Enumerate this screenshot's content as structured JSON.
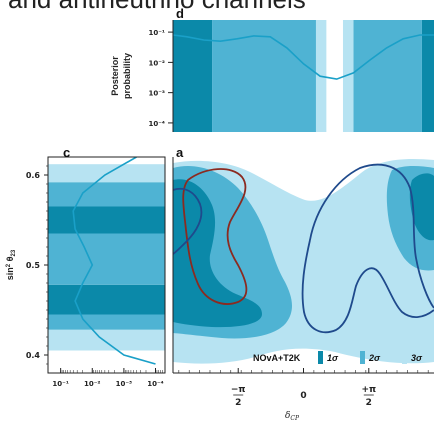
{
  "header_text": "and antineutrino channels",
  "colors": {
    "sigma1": "#0b89a9",
    "sigma2": "#4fb3d3",
    "sigma3": "#b7e3f2",
    "contour_blue": "#1f4a8c",
    "contour_red": "#8b2a20",
    "posterior_line": "#1aa0c8"
  },
  "chart_data": [
    {
      "panel": "d",
      "type": "area",
      "ylabel": "Posterior probability",
      "y_ticks": [
        "10⁻¹",
        "10⁻²",
        "10⁻³",
        "10⁻⁴"
      ],
      "y_scale": "log",
      "x_shared_with": "a",
      "bands": [
        {
          "name": "1σ",
          "intervals": [
            [
              -3.14,
              -2.2
            ],
            [
              2.85,
              3.14
            ]
          ]
        },
        {
          "name": "2σ",
          "intervals": [
            [
              -2.2,
              0.3
            ],
            [
              1.2,
              2.85
            ]
          ]
        },
        {
          "name": "3σ",
          "intervals": [
            [
              0.3,
              0.55
            ],
            [
              0.95,
              1.2
            ]
          ]
        }
      ],
      "curve": {
        "x": [
          -3.14,
          -2.8,
          -2.4,
          -2.0,
          -1.6,
          -1.2,
          -0.8,
          -0.4,
          0.0,
          0.4,
          0.8,
          1.2,
          1.6,
          2.0,
          2.4,
          2.8,
          3.14
        ],
        "y": [
          0.08,
          0.07,
          0.055,
          0.05,
          0.06,
          0.075,
          0.07,
          0.03,
          0.009,
          0.0035,
          0.0028,
          0.0045,
          0.012,
          0.03,
          0.06,
          0.08,
          0.08
        ]
      }
    },
    {
      "panel": "c",
      "type": "area",
      "xlabel": "",
      "x_ticks": [
        "10⁻¹",
        "10⁻²",
        "10⁻³",
        "10⁻⁴"
      ],
      "x_scale": "log",
      "y_shared_with": "a",
      "bands": [
        {
          "name": "1σ",
          "intervals": [
            [
              0.445,
              0.478
            ],
            [
              0.535,
              0.565
            ]
          ]
        },
        {
          "name": "2σ",
          "intervals": [
            [
              0.428,
              0.445
            ],
            [
              0.478,
              0.535
            ],
            [
              0.565,
              0.592
            ]
          ]
        },
        {
          "name": "3σ",
          "intervals": [
            [
              0.405,
              0.428
            ],
            [
              0.592,
              0.612
            ]
          ]
        }
      ],
      "curve": {
        "y": [
          0.39,
          0.4,
          0.42,
          0.44,
          0.46,
          0.48,
          0.5,
          0.52,
          0.54,
          0.56,
          0.58,
          0.6,
          0.62
        ],
        "p": [
          0.0001,
          0.001,
          0.006,
          0.02,
          0.035,
          0.02,
          0.01,
          0.018,
          0.035,
          0.04,
          0.02,
          0.004,
          0.0004
        ]
      }
    },
    {
      "panel": "a",
      "type": "contour",
      "xlabel": "δCP",
      "ylabel": "sin²θ23",
      "x_ticks": [
        "−π/2",
        "0",
        "+π/2"
      ],
      "y_ticks": [
        "0.6",
        "0.5",
        "0.4"
      ],
      "xlim": [
        -3.14,
        3.14
      ],
      "ylim": [
        0.38,
        0.62
      ],
      "legend": {
        "title": "NOvA+T2K",
        "entries": [
          "1σ",
          "2σ",
          "3σ"
        ],
        "placement": "bottom-right"
      }
    }
  ]
}
